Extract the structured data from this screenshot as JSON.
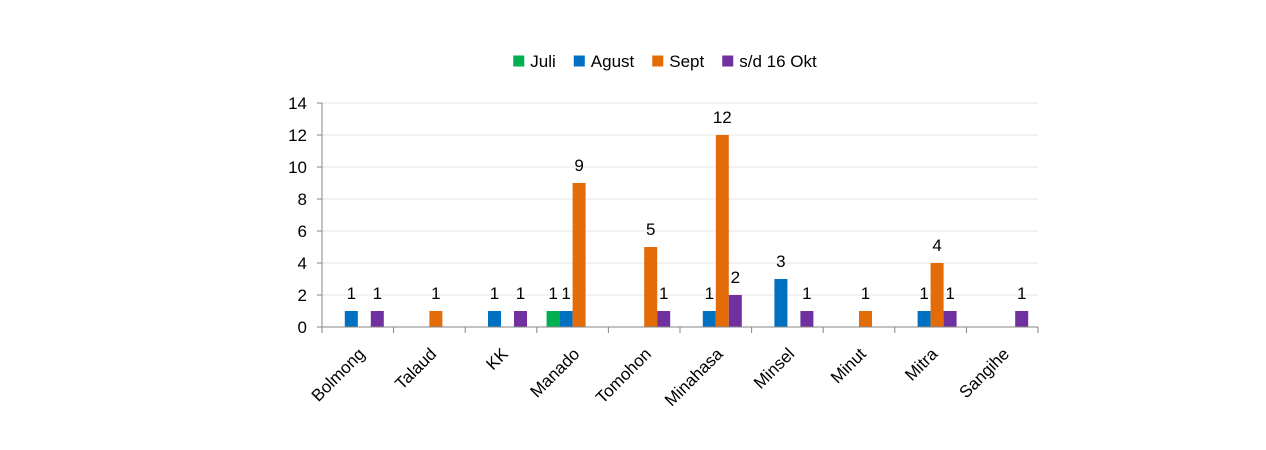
{
  "chart_data": {
    "type": "bar",
    "title": "",
    "xlabel": "",
    "ylabel": "",
    "ylim": [
      0,
      14
    ],
    "yticks": [
      0,
      2,
      4,
      6,
      8,
      10,
      12,
      14
    ],
    "grid": true,
    "legend": "top",
    "categories": [
      "Bolmong",
      "Talaud",
      "KK",
      "Manado",
      "Tomohon",
      "Minahasa",
      "Minsel",
      "Minut",
      "Mitra",
      "Sangihe"
    ],
    "series": [
      {
        "name": "Juli",
        "color": "#00b050",
        "values": [
          null,
          null,
          null,
          1,
          null,
          null,
          null,
          null,
          null,
          null
        ]
      },
      {
        "name": "Agust",
        "color": "#0070c0",
        "values": [
          1,
          null,
          1,
          1,
          null,
          1,
          3,
          null,
          1,
          null
        ]
      },
      {
        "name": "Sept",
        "color": "#e36c09",
        "values": [
          null,
          1,
          null,
          9,
          5,
          12,
          null,
          1,
          4,
          null
        ]
      },
      {
        "name": "s/d 16 Okt",
        "color": "#7030a0",
        "values": [
          1,
          null,
          1,
          null,
          1,
          2,
          1,
          null,
          1,
          1
        ]
      }
    ]
  }
}
